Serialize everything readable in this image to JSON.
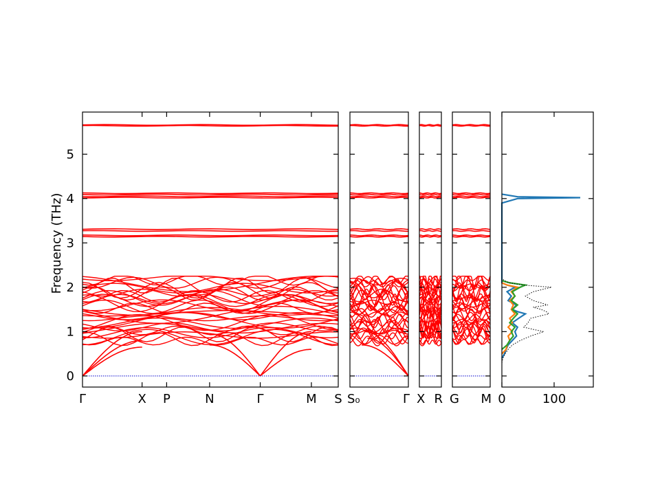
{
  "chart_data": {
    "type": "line",
    "ylabel": "Frequency (THz)",
    "ylim": [
      -0.25,
      5.95
    ],
    "yticks": [
      0,
      1,
      2,
      3,
      4,
      5
    ],
    "band_color": "#ff0000",
    "zero_line_color": "#0000cc",
    "panels": [
      {
        "labels": [
          {
            "text": "Γ",
            "pos": 0.0
          },
          {
            "text": "X",
            "pos": 0.233
          },
          {
            "text": "P",
            "pos": 0.329
          },
          {
            "text": "N",
            "pos": 0.497
          },
          {
            "text": "Γ",
            "pos": 0.695
          },
          {
            "text": "M",
            "pos": 0.895
          },
          {
            "text": "S",
            "pos": 1.0
          }
        ]
      },
      {
        "labels": [
          {
            "text": "S₀",
            "pos": 0.0
          },
          {
            "text": "Γ",
            "pos": 1.0
          }
        ]
      },
      {
        "labels": [
          {
            "text": "X",
            "pos": 0.0
          },
          {
            "text": "R",
            "pos": 1.0
          }
        ]
      },
      {
        "labels": [
          {
            "text": "G",
            "pos": 0.0
          },
          {
            "text": "M",
            "pos": 1.0
          }
        ]
      }
    ],
    "flat_bands": [
      5.66,
      5.64,
      4.12,
      4.09,
      4.05,
      4.02,
      3.31,
      3.27,
      3.17,
      3.14
    ],
    "dos": {
      "xlim": [
        0,
        175
      ],
      "xticks": [
        0,
        100
      ],
      "total": {
        "style": "dotted",
        "color": "#000000",
        "points": [
          [
            0,
            0.3
          ],
          [
            2,
            0.4
          ],
          [
            6,
            0.5
          ],
          [
            12,
            0.6
          ],
          [
            20,
            0.7
          ],
          [
            35,
            0.8
          ],
          [
            55,
            0.9
          ],
          [
            80,
            1.0
          ],
          [
            60,
            1.05
          ],
          [
            42,
            1.1
          ],
          [
            50,
            1.2
          ],
          [
            55,
            1.3
          ],
          [
            90,
            1.4
          ],
          [
            85,
            1.45
          ],
          [
            75,
            1.5
          ],
          [
            60,
            1.55
          ],
          [
            88,
            1.6
          ],
          [
            60,
            1.7
          ],
          [
            45,
            1.8
          ],
          [
            60,
            1.9
          ],
          [
            95,
            2.0
          ],
          [
            40,
            2.05
          ],
          [
            15,
            2.1
          ],
          [
            5,
            2.15
          ],
          [
            0,
            2.2
          ]
        ]
      },
      "series": [
        {
          "color": "#1f77b4",
          "points": [
            [
              0,
              0.4
            ],
            [
              5,
              0.5
            ],
            [
              8,
              0.6
            ],
            [
              12,
              0.7
            ],
            [
              20,
              0.8
            ],
            [
              28,
              0.9
            ],
            [
              25,
              1.0
            ],
            [
              30,
              1.1
            ],
            [
              20,
              1.2
            ],
            [
              32,
              1.3
            ],
            [
              45,
              1.4
            ],
            [
              30,
              1.45
            ],
            [
              20,
              1.5
            ],
            [
              28,
              1.6
            ],
            [
              12,
              1.7
            ],
            [
              18,
              1.8
            ],
            [
              10,
              1.9
            ],
            [
              25,
              2.0
            ],
            [
              10,
              2.05
            ],
            [
              0,
              2.1
            ],
            [
              0,
              3.9
            ],
            [
              30,
              4.0
            ],
            [
              150,
              4.02
            ],
            [
              30,
              4.04
            ],
            [
              0,
              4.1
            ]
          ]
        },
        {
          "color": "#ff7f0e",
          "points": [
            [
              0,
              0.5
            ],
            [
              8,
              0.6
            ],
            [
              10,
              0.7
            ],
            [
              15,
              0.8
            ],
            [
              12,
              0.9
            ],
            [
              20,
              1.0
            ],
            [
              12,
              1.1
            ],
            [
              20,
              1.2
            ],
            [
              15,
              1.3
            ],
            [
              25,
              1.4
            ],
            [
              18,
              1.5
            ],
            [
              22,
              1.6
            ],
            [
              15,
              1.7
            ],
            [
              25,
              1.8
            ],
            [
              18,
              1.9
            ],
            [
              30,
              2.0
            ],
            [
              10,
              2.05
            ],
            [
              0,
              2.1
            ]
          ]
        },
        {
          "color": "#2ca02c",
          "points": [
            [
              0,
              0.6
            ],
            [
              10,
              0.7
            ],
            [
              15,
              0.8
            ],
            [
              22,
              0.9
            ],
            [
              18,
              1.0
            ],
            [
              25,
              1.1
            ],
            [
              15,
              1.2
            ],
            [
              22,
              1.3
            ],
            [
              30,
              1.4
            ],
            [
              20,
              1.5
            ],
            [
              30,
              1.6
            ],
            [
              18,
              1.7
            ],
            [
              25,
              1.8
            ],
            [
              20,
              1.9
            ],
            [
              35,
              2.0
            ],
            [
              45,
              2.05
            ],
            [
              15,
              2.1
            ],
            [
              0,
              2.15
            ]
          ]
        }
      ]
    }
  }
}
